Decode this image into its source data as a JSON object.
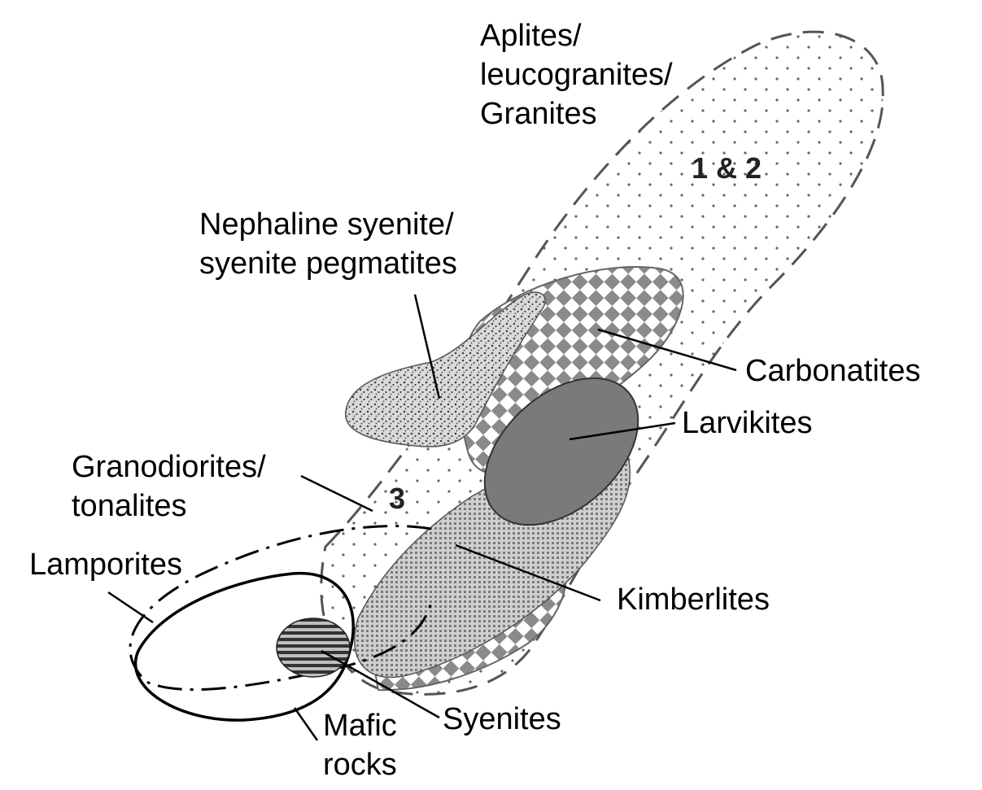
{
  "labels": {
    "aplites": [
      "Aplites/",
      "leucogranites/",
      "Granites"
    ],
    "nepheline": [
      "Nephaline syenite/",
      "syenite pegmatites"
    ],
    "carbonatites": "Carbonatites",
    "larvikites": "Larvikites",
    "granodiorites": [
      "Granodiorites/",
      "tonalites"
    ],
    "lamporites": "Lamporites",
    "kimberlites": "Kimberlites",
    "syenites": "Syenites",
    "mafic": [
      "Mafic",
      "rocks"
    ]
  },
  "zones": {
    "upper": "1 & 2",
    "lower": "3"
  },
  "colors": {
    "line": "#000000",
    "dashed_outline": "#555555",
    "larvikites_fill": "#7a7a7a",
    "pattern_dots": "#666666",
    "checker": "#8a8a8a",
    "stipple": "#444444",
    "kimberlite_grid": "#555555",
    "hatch": "#333333"
  }
}
